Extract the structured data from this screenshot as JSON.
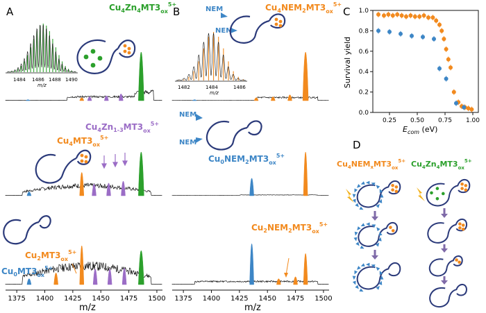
{
  "figure": {
    "panel_letters": {
      "A": "A",
      "B": "B",
      "C": "C",
      "D": "D"
    },
    "colors": {
      "black": "#111111",
      "orange": "#f28a1e",
      "green": "#2ca02c",
      "purple": "#9b6dc6",
      "blue": "#3d86c6",
      "navy": "#2b3a7a"
    }
  },
  "panel_A": {
    "traces": [
      {
        "label_main": "Cu",
        "label_sub1": "4",
        "label_mid": "Zn",
        "label_sub2": "4",
        "label_tail": "MT3",
        "label_sub3": "ox",
        "label_sup": "5+"
      },
      {
        "label_main": "Cu",
        "label_sub1": "4",
        "label_mid": "Zn",
        "label_sub2": "1-3",
        "label_tail": "MT3",
        "label_sub3": "ox",
        "label_sup": "5+"
      },
      {
        "label_main": "Cu",
        "label_sub1": "4",
        "label_mid": "",
        "label_sub2": "",
        "label_tail": "MT3",
        "label_sub3": "ox",
        "label_sup": "5+"
      }
    ],
    "labels_bottom": {
      "cu2": {
        "pre": "Cu",
        "sub": "2",
        "post": "MT3",
        "sub2": "ox",
        "sup": "5+"
      },
      "cu0": {
        "pre": "Cu",
        "sub": "0",
        "post": "MT3",
        "sub2": "ox",
        "sup": "5+"
      }
    },
    "inset": {
      "ticks": [
        "1484",
        "1486",
        "1488",
        "1490"
      ],
      "xlabel": "m/z"
    },
    "x_ticks": [
      "1375",
      "1400",
      "1425",
      "1450",
      "1475",
      "1500"
    ],
    "xlabel": "m/z"
  },
  "panel_B": {
    "top_label": {
      "pre": "Cu",
      "sub": "4",
      "mid": "NEM",
      "sub2": "2",
      "tail": "MT3",
      "sub3": "ox",
      "sup": "5+"
    },
    "mid_label": {
      "pre": "Cu",
      "sub": "0",
      "mid": "NEM",
      "sub2": "2",
      "tail": "MT3",
      "sub3": "ox",
      "sup": "5+"
    },
    "bot_label": {
      "pre": "Cu",
      "sub": "2",
      "mid": "NEM",
      "sub2": "2",
      "tail": "MT3",
      "sub3": "ox",
      "sup": "5+"
    },
    "nem": "NEM",
    "inset": {
      "ticks": [
        "1482",
        "1484",
        "1486"
      ],
      "xlabel": "m/z"
    },
    "x_ticks": [
      "1375",
      "1400",
      "1425",
      "1450",
      "1475",
      "1500"
    ],
    "xlabel": "m/z"
  },
  "chart_data": {
    "type": "scatter",
    "ylabel": "Survival yield",
    "xlabel_main": "E",
    "xlabel_sub": "com",
    "xlabel_unit": " (eV)",
    "xlim": [
      0.1,
      1.05
    ],
    "ylim": [
      0.0,
      1.0
    ],
    "x_ticks": [
      "0.25",
      "0.50",
      "0.75",
      "1.00"
    ],
    "y_ticks": [
      "0.0",
      "0.2",
      "0.4",
      "0.6",
      "0.8",
      "1.0"
    ],
    "series": [
      {
        "name": "Cu4NEMxMT3ox5+",
        "color": "#f28a1e",
        "x": [
          0.15,
          0.2,
          0.24,
          0.28,
          0.32,
          0.36,
          0.4,
          0.44,
          0.48,
          0.52,
          0.56,
          0.6,
          0.64,
          0.67,
          0.7,
          0.72,
          0.74,
          0.76,
          0.78,
          0.8,
          0.83,
          0.87,
          0.9,
          0.93,
          0.96,
          0.99
        ],
        "y": [
          0.96,
          0.95,
          0.96,
          0.95,
          0.96,
          0.95,
          0.94,
          0.95,
          0.94,
          0.94,
          0.95,
          0.93,
          0.93,
          0.9,
          0.86,
          0.8,
          0.72,
          0.62,
          0.52,
          0.44,
          0.2,
          0.1,
          0.06,
          0.05,
          0.04,
          0.03
        ]
      },
      {
        "name": "Cu4Zn4MT3ox5+",
        "color": "#3d86c6",
        "x": [
          0.15,
          0.25,
          0.35,
          0.45,
          0.55,
          0.65,
          0.7,
          0.76,
          0.85,
          0.92
        ],
        "y": [
          0.8,
          0.79,
          0.77,
          0.75,
          0.74,
          0.72,
          0.43,
          0.33,
          0.09,
          0.05
        ]
      }
    ]
  },
  "panel_D": {
    "left_title": {
      "pre": "Cu",
      "sub": "4",
      "mid": "NEM",
      "sub2": "x",
      "tail": "MT3",
      "sub3": "ox",
      "sup": "5+"
    },
    "right_title": {
      "pre": "Cu",
      "sub": "4",
      "mid": "Zn",
      "sub2": "4",
      "tail": "MT3",
      "sub3": "ox",
      "sup": "5+"
    }
  }
}
